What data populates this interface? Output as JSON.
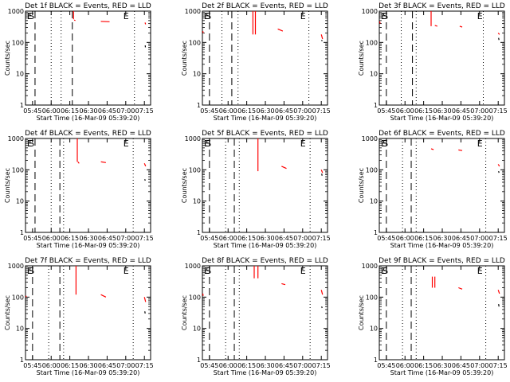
{
  "chart_data": [
    {
      "type": "line",
      "title": "Det 1f BLACK = Events, RED = LLD",
      "xlabel": "Start Time (16-Mar-09 05:39:20)",
      "ylabel": "Counts/sec",
      "x_ticks": [
        "05:45",
        "06:00",
        "06:15",
        "06:30",
        "06:45",
        "07:00",
        "07:15"
      ],
      "y_ticks": [
        "1",
        "10",
        "100",
        "1000"
      ],
      "ylim": [
        1,
        1000
      ],
      "y_scale": "log",
      "xlim": [
        "05:39:20",
        "07:20:00"
      ],
      "markers": [
        {
          "text": "E",
          "x": "05:40:30"
        },
        {
          "text": "S",
          "x": "05:42:00"
        },
        {
          "text": "E",
          "x": "06:58:00"
        }
      ],
      "dashed_lines": [
        "05:47:00",
        "06:17:00"
      ],
      "dotted_lines": [
        "06:00:00",
        "06:08:00",
        "07:07:00"
      ],
      "series": [
        {
          "color": "#ff0000",
          "segments": [
            {
              "x": [
                "06:18:00",
                "06:18:00"
              ],
              "y": [
                1000,
                550
              ]
            },
            {
              "x": [
                "06:18:30",
                "06:19:30"
              ],
              "y": [
                520,
                500
              ]
            },
            {
              "x": [
                "06:40:00",
                "06:47:00"
              ],
              "y": [
                470,
                460
              ]
            },
            {
              "x": [
                "07:15:30",
                "07:16:00"
              ],
              "y": [
                430,
                380
              ]
            }
          ]
        },
        {
          "color": "#000000",
          "segments": [
            {
              "x": [
                "07:15:40",
                "07:15:50"
              ],
              "y": [
                80,
                70
              ]
            }
          ]
        }
      ]
    },
    {
      "type": "line",
      "title": "Det 2f BLACK = Events, RED = LLD",
      "xlabel": "Start Time (16-Mar-09 05:39:20)",
      "ylabel": "Counts/sec",
      "x_ticks": [
        "05:45",
        "06:00",
        "06:15",
        "06:30",
        "06:45",
        "07:00",
        "07:15"
      ],
      "y_ticks": [
        "1",
        "10",
        "100",
        "1000"
      ],
      "ylim": [
        1,
        1000
      ],
      "y_scale": "log",
      "xlim": [
        "05:39:20",
        "07:20:00"
      ],
      "markers": [
        {
          "text": "E",
          "x": "05:40:30"
        },
        {
          "text": "S",
          "x": "05:42:00"
        },
        {
          "text": "E",
          "x": "06:58:00"
        }
      ],
      "dashed_lines": [
        "05:45:00",
        "06:03:00"
      ],
      "dotted_lines": [
        "05:55:00",
        "06:08:00",
        "07:05:00"
      ],
      "series": [
        {
          "color": "#ff0000",
          "segments": [
            {
              "x": [
                "05:39:40",
                "05:40:00"
              ],
              "y": [
                230,
                200
              ]
            },
            {
              "x": [
                "06:20:00",
                "06:20:00"
              ],
              "y": [
                1000,
                180
              ]
            },
            {
              "x": [
                "06:22:00",
                "06:22:00"
              ],
              "y": [
                1000,
                180
              ]
            },
            {
              "x": [
                "06:40:00",
                "06:44:00"
              ],
              "y": [
                270,
                230
              ]
            },
            {
              "x": [
                "07:15:00",
                "07:16:00"
              ],
              "y": [
                180,
                130
              ]
            }
          ]
        },
        {
          "color": "#000000",
          "segments": [
            {
              "x": [
                "07:15:20",
                "07:15:40"
              ],
              "y": [
                120,
                110
              ]
            }
          ]
        }
      ]
    },
    {
      "type": "line",
      "title": "Det 3f BLACK = Events, RED = LLD",
      "xlabel": "Start Time (16-Mar-09 05:39:20)",
      "ylabel": "Counts/sec",
      "x_ticks": [
        "05:45",
        "06:00",
        "06:15",
        "06:30",
        "06:45",
        "07:00",
        "07:15"
      ],
      "y_ticks": [
        "1",
        "10",
        "100",
        "1000"
      ],
      "ylim": [
        1,
        1000
      ],
      "y_scale": "log",
      "xlim": [
        "05:39:20",
        "07:20:00"
      ],
      "markers": [
        {
          "text": "E",
          "x": "05:40:30"
        },
        {
          "text": "S",
          "x": "05:42:00"
        },
        {
          "text": "E",
          "x": "06:58:00"
        }
      ],
      "dashed_lines": [
        "05:45:00",
        "06:06:00"
      ],
      "dotted_lines": [
        "05:57:00",
        "06:09:00",
        "07:03:00"
      ],
      "series": [
        {
          "color": "#ff0000",
          "segments": [
            {
              "x": [
                "05:39:40",
                "05:40:00"
              ],
              "y": [
                470,
                400
              ]
            },
            {
              "x": [
                "06:21:00",
                "06:21:00"
              ],
              "y": [
                1000,
                330
              ]
            },
            {
              "x": [
                "06:24:00",
                "06:26:00"
              ],
              "y": [
                350,
                330
              ]
            },
            {
              "x": [
                "06:44:00",
                "06:46:00"
              ],
              "y": [
                330,
                310
              ]
            },
            {
              "x": [
                "07:15:00",
                "07:16:00"
              ],
              "y": [
                200,
                180
              ]
            }
          ]
        },
        {
          "color": "#000000",
          "segments": [
            {
              "x": [
                "07:15:20",
                "07:15:40"
              ],
              "y": [
                140,
                120
              ]
            }
          ]
        }
      ]
    },
    {
      "type": "line",
      "title": "Det 4f BLACK = Events, RED = LLD",
      "xlabel": "Start Time (16-Mar-09 05:39:20)",
      "ylabel": "Counts/sec",
      "x_ticks": [
        "05:45",
        "06:00",
        "06:15",
        "06:30",
        "06:45",
        "07:00",
        "07:15"
      ],
      "y_ticks": [
        "1",
        "10",
        "100",
        "1000"
      ],
      "ylim": [
        1,
        1000
      ],
      "y_scale": "log",
      "xlim": [
        "05:39:20",
        "07:20:00"
      ],
      "markers": [
        {
          "text": "E",
          "x": "05:40:30"
        },
        {
          "text": "S",
          "x": "05:42:00"
        },
        {
          "text": "E",
          "x": "06:58:00"
        }
      ],
      "dashed_lines": [
        "05:47:00",
        "06:07:00"
      ],
      "dotted_lines": [
        "06:00:00",
        "06:10:00",
        "07:06:00"
      ],
      "series": [
        {
          "color": "#ff0000",
          "segments": [
            {
              "x": [
                "06:21:00",
                "06:21:00"
              ],
              "y": [
                1000,
                180
              ]
            },
            {
              "x": [
                "06:21:30",
                "06:22:30"
              ],
              "y": [
                180,
                160
              ]
            },
            {
              "x": [
                "06:40:00",
                "06:44:00"
              ],
              "y": [
                180,
                170
              ]
            },
            {
              "x": [
                "07:15:00",
                "07:16:00"
              ],
              "y": [
                160,
                130
              ]
            }
          ]
        },
        {
          "color": "#000000",
          "segments": [
            {
              "x": [
                "07:15:20",
                "07:15:40"
              ],
              "y": [
                50,
                45
              ]
            }
          ]
        }
      ]
    },
    {
      "type": "line",
      "title": "Det 5f BLACK = Events, RED = LLD",
      "xlabel": "Start Time (16-Mar-09 05:39:20)",
      "ylabel": "Counts/sec",
      "x_ticks": [
        "05:45",
        "06:00",
        "06:15",
        "06:30",
        "06:45",
        "07:00",
        "07:15"
      ],
      "y_ticks": [
        "1",
        "10",
        "100",
        "1000"
      ],
      "ylim": [
        1,
        1000
      ],
      "y_scale": "log",
      "xlim": [
        "05:39:20",
        "07:20:00"
      ],
      "markers": [
        {
          "text": "E",
          "x": "05:40:30"
        },
        {
          "text": "S",
          "x": "05:42:00"
        },
        {
          "text": "E",
          "x": "06:58:00"
        }
      ],
      "dashed_lines": [
        "05:45:00",
        "06:05:00"
      ],
      "dotted_lines": [
        "05:58:00",
        "06:09:00",
        "07:06:00"
      ],
      "series": [
        {
          "color": "#ff0000",
          "segments": [
            {
              "x": [
                "06:24:00",
                "06:24:00"
              ],
              "y": [
                1000,
                90
              ]
            },
            {
              "x": [
                "06:43:00",
                "06:47:00"
              ],
              "y": [
                130,
                110
              ]
            },
            {
              "x": [
                "07:15:00",
                "07:16:00"
              ],
              "y": [
                100,
                80
              ]
            }
          ]
        },
        {
          "color": "#000000",
          "segments": [
            {
              "x": [
                "07:15:20",
                "07:15:40"
              ],
              "y": [
                75,
                65
              ]
            }
          ]
        }
      ]
    },
    {
      "type": "line",
      "title": "Det 6f BLACK = Events, RED = LLD",
      "xlabel": "Start Time (16-Mar-09 05:39:20)",
      "ylabel": "Counts/sec",
      "x_ticks": [
        "05:45",
        "06:00",
        "06:15",
        "06:30",
        "06:45",
        "07:00",
        "07:15"
      ],
      "y_ticks": [
        "1",
        "10",
        "100",
        "1000"
      ],
      "ylim": [
        1,
        1000
      ],
      "y_scale": "log",
      "xlim": [
        "05:39:20",
        "07:20:00"
      ],
      "markers": [
        {
          "text": "E",
          "x": "05:40:30"
        },
        {
          "text": "S",
          "x": "05:42:00"
        },
        {
          "text": "E",
          "x": "06:58:00"
        }
      ],
      "dashed_lines": [
        "05:45:00",
        "06:05:00"
      ],
      "dotted_lines": [
        "05:58:00",
        "06:09:00",
        "07:05:00"
      ],
      "series": [
        {
          "color": "#ff0000",
          "segments": [
            {
              "x": [
                "06:21:00",
                "06:23:00"
              ],
              "y": [
                470,
                440
              ]
            },
            {
              "x": [
                "06:43:00",
                "06:46:00"
              ],
              "y": [
                430,
                410
              ]
            },
            {
              "x": [
                "07:15:00",
                "07:16:00"
              ],
              "y": [
                150,
                130
              ]
            }
          ]
        },
        {
          "color": "#000000",
          "segments": [
            {
              "x": [
                "07:15:20",
                "07:15:40"
              ],
              "y": [
                90,
                80
              ]
            }
          ]
        }
      ]
    },
    {
      "type": "line",
      "title": "Det 7f BLACK = Events, RED = LLD",
      "xlabel": "Start Time (16-Mar-09 05:39:20)",
      "ylabel": "Counts/sec",
      "x_ticks": [
        "05:45",
        "06:00",
        "06:15",
        "06:30",
        "06:45",
        "07:00",
        "07:15"
      ],
      "y_ticks": [
        "1",
        "10",
        "100",
        "1000"
      ],
      "ylim": [
        1,
        1000
      ],
      "y_scale": "log",
      "xlim": [
        "05:39:20",
        "07:20:00"
      ],
      "markers": [
        {
          "text": "E",
          "x": "05:40:30"
        },
        {
          "text": "S",
          "x": "05:42:00"
        },
        {
          "text": "E",
          "x": "06:58:00"
        }
      ],
      "dashed_lines": [
        "05:45:00",
        "06:07:00"
      ],
      "dotted_lines": [
        "05:58:00",
        "06:10:00",
        "07:06:00"
      ],
      "series": [
        {
          "color": "#ff0000",
          "segments": [
            {
              "x": [
                "05:39:40",
                "05:40:00"
              ],
              "y": [
                110,
                100
              ]
            },
            {
              "x": [
                "06:20:00",
                "06:20:00"
              ],
              "y": [
                1000,
                120
              ]
            },
            {
              "x": [
                "06:40:00",
                "06:44:00"
              ],
              "y": [
                120,
                100
              ]
            },
            {
              "x": [
                "07:15:00",
                "07:16:00"
              ],
              "y": [
                100,
                70
              ]
            }
          ]
        },
        {
          "color": "#000000",
          "segments": [
            {
              "x": [
                "07:15:20",
                "07:15:40"
              ],
              "y": [
                35,
                30
              ]
            }
          ]
        }
      ]
    },
    {
      "type": "line",
      "title": "Det 8f BLACK = Events, RED = LLD",
      "xlabel": "Start Time (16-Mar-09 05:39:20)",
      "ylabel": "Counts/sec",
      "x_ticks": [
        "05:45",
        "06:00",
        "06:15",
        "06:30",
        "06:45",
        "07:00",
        "07:15"
      ],
      "y_ticks": [
        "1",
        "10",
        "100",
        "1000"
      ],
      "ylim": [
        1,
        1000
      ],
      "y_scale": "log",
      "xlim": [
        "05:39:20",
        "07:20:00"
      ],
      "markers": [
        {
          "text": "E",
          "x": "05:40:30"
        },
        {
          "text": "S",
          "x": "05:42:00"
        },
        {
          "text": "E",
          "x": "06:58:00"
        }
      ],
      "dashed_lines": [
        "05:45:00",
        "06:05:00"
      ],
      "dotted_lines": [
        "05:58:00",
        "06:09:00",
        "07:06:00"
      ],
      "series": [
        {
          "color": "#ff0000",
          "segments": [
            {
              "x": [
                "05:39:40",
                "05:40:00"
              ],
              "y": [
                130,
                110
              ]
            },
            {
              "x": [
                "06:21:00",
                "06:21:00"
              ],
              "y": [
                1000,
                400
              ]
            },
            {
              "x": [
                "06:24:00",
                "06:24:00"
              ],
              "y": [
                1000,
                400
              ]
            },
            {
              "x": [
                "06:43:00",
                "06:46:00"
              ],
              "y": [
                270,
                250
              ]
            },
            {
              "x": [
                "07:15:00",
                "07:16:00"
              ],
              "y": [
                170,
                120
              ]
            }
          ]
        },
        {
          "color": "#000000",
          "segments": [
            {
              "x": [
                "07:15:20",
                "07:15:40"
              ],
              "y": [
                50,
                45
              ]
            }
          ]
        }
      ]
    },
    {
      "type": "line",
      "title": "Det 9f BLACK = Events, RED = LLD",
      "xlabel": "Start Time (16-Mar-09 05:39:20)",
      "ylabel": "Counts/sec",
      "x_ticks": [
        "05:45",
        "06:00",
        "06:15",
        "06:30",
        "06:45",
        "07:00",
        "07:15"
      ],
      "y_ticks": [
        "1",
        "10",
        "100",
        "1000"
      ],
      "ylim": [
        1,
        1000
      ],
      "y_scale": "log",
      "xlim": [
        "05:39:20",
        "07:20:00"
      ],
      "markers": [
        {
          "text": "E",
          "x": "05:40:30"
        },
        {
          "text": "S",
          "x": "05:42:00"
        },
        {
          "text": "E",
          "x": "06:58:00"
        }
      ],
      "dashed_lines": [
        "05:45:00",
        "06:05:00"
      ],
      "dotted_lines": [
        "05:58:00",
        "06:09:00",
        "07:05:00"
      ],
      "series": [
        {
          "color": "#ff0000",
          "segments": [
            {
              "x": [
                "06:22:00",
                "06:22:00"
              ],
              "y": [
                450,
                200
              ]
            },
            {
              "x": [
                "06:24:00",
                "06:24:00"
              ],
              "y": [
                450,
                200
              ]
            },
            {
              "x": [
                "06:43:00",
                "06:46:00"
              ],
              "y": [
                200,
                180
              ]
            },
            {
              "x": [
                "07:15:00",
                "07:16:00"
              ],
              "y": [
                170,
                130
              ]
            }
          ]
        },
        {
          "color": "#000000",
          "segments": [
            {
              "x": [
                "07:15:20",
                "07:15:40"
              ],
              "y": [
                60,
                50
              ]
            }
          ]
        }
      ]
    }
  ]
}
